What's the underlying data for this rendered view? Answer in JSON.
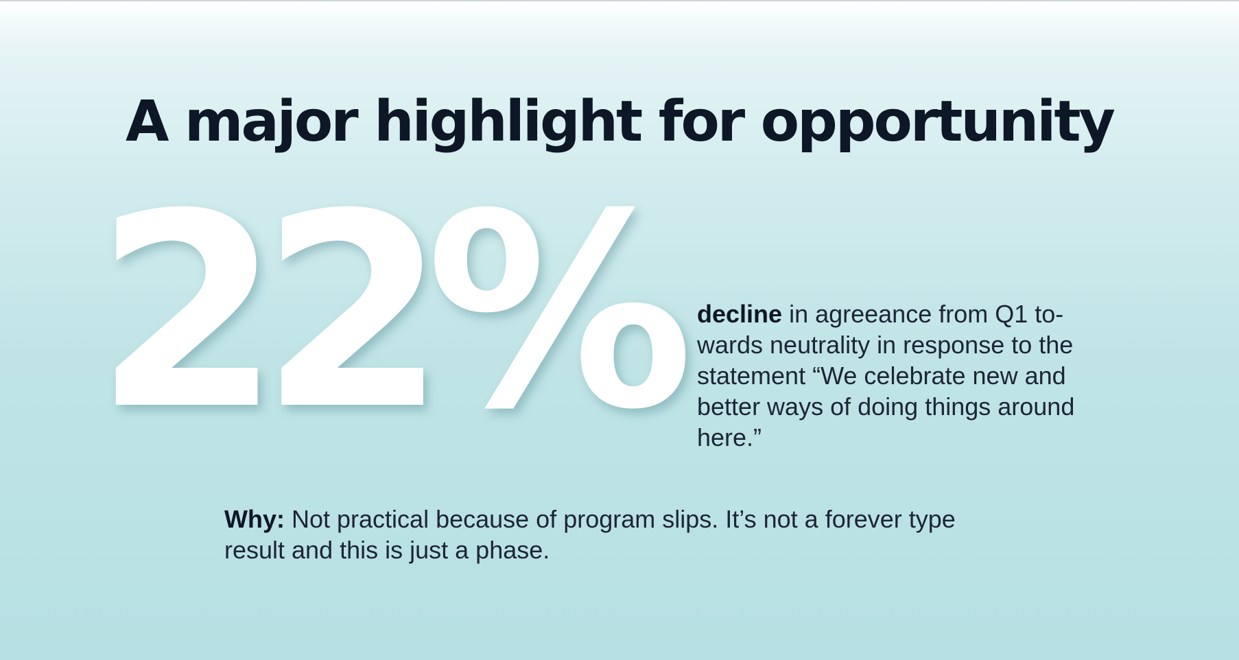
{
  "headline": "A major highlight for opportunity",
  "stat": {
    "value": "22%",
    "description_lead": "decline",
    "description_body": " in agreeance from Q1 to­wards neutrality in response to the statement “We celebrate new and better ways of doing things around here.”"
  },
  "why": {
    "label": "Why:",
    "text": " Not practical because of program slips. It’s not a forever type result and this is just a phase."
  },
  "colors": {
    "headline_text": "#0e1726",
    "stat_text": "#ffffff",
    "background_top": "#ffffff",
    "background_bottom": "#b6e0e3"
  }
}
